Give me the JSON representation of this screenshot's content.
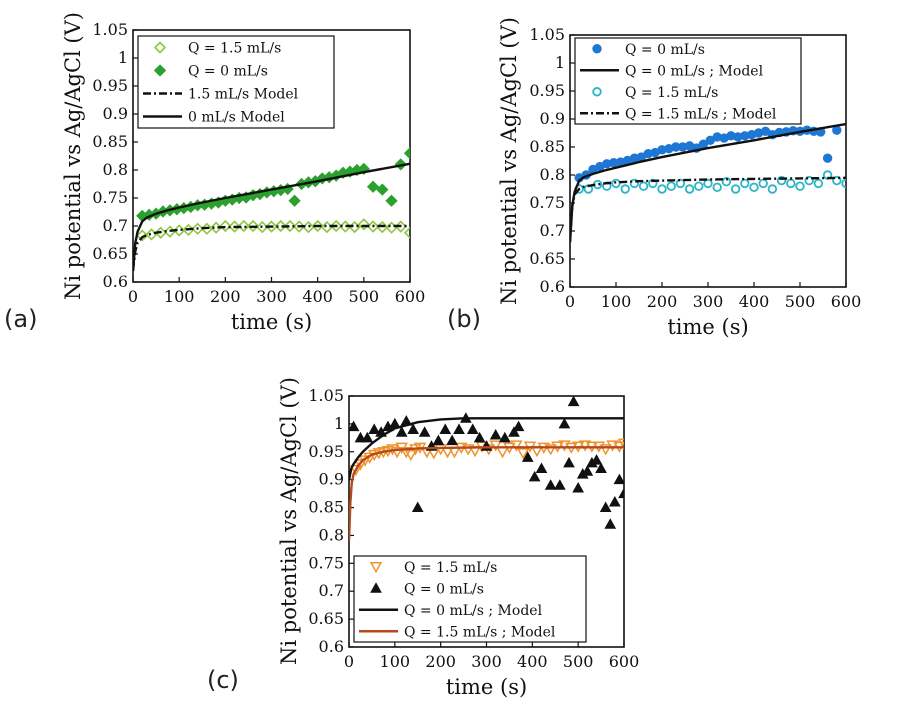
{
  "chart_data": [
    {
      "panel": "(a)",
      "type": "scatter",
      "xlabel": "time (s)",
      "ylabel": "Ni potential vs Ag/AgCl (V)",
      "xlim": [
        0,
        600
      ],
      "ylim": [
        0.6,
        1.05
      ],
      "xticks": [
        "0",
        "100",
        "200",
        "300",
        "400",
        "500",
        "600"
      ],
      "yticks": [
        "0.6",
        "0.65",
        "0.7",
        "0.75",
        "0.8",
        "0.85",
        "0.9",
        "0.95",
        "1",
        "1.05"
      ],
      "legend_position": "top-left",
      "series": [
        {
          "name": "Q = 1.5 mL/s",
          "kind": "points",
          "marker": "diamond-open",
          "color": "#8dc63f",
          "x": [
            20,
            40,
            60,
            80,
            100,
            120,
            140,
            160,
            180,
            200,
            220,
            240,
            260,
            280,
            300,
            320,
            340,
            360,
            380,
            400,
            420,
            440,
            460,
            480,
            500,
            520,
            540,
            560,
            580,
            600
          ],
          "y": [
            0.683,
            0.685,
            0.688,
            0.69,
            0.692,
            0.693,
            0.695,
            0.695,
            0.697,
            0.7,
            0.699,
            0.7,
            0.7,
            0.698,
            0.699,
            0.7,
            0.7,
            0.699,
            0.698,
            0.7,
            0.698,
            0.7,
            0.699,
            0.698,
            0.703,
            0.699,
            0.698,
            0.697,
            0.699,
            0.688
          ]
        },
        {
          "name": "Q = 0 mL/s",
          "kind": "points",
          "marker": "diamond",
          "color": "#2ca02c",
          "x": [
            20,
            35,
            50,
            65,
            80,
            95,
            110,
            125,
            140,
            155,
            170,
            185,
            200,
            215,
            230,
            245,
            260,
            275,
            290,
            305,
            320,
            335,
            350,
            365,
            380,
            395,
            410,
            425,
            440,
            455,
            470,
            485,
            500,
            520,
            540,
            560,
            580,
            600
          ],
          "y": [
            0.718,
            0.72,
            0.722,
            0.726,
            0.728,
            0.73,
            0.732,
            0.734,
            0.737,
            0.738,
            0.74,
            0.742,
            0.745,
            0.747,
            0.75,
            0.751,
            0.755,
            0.757,
            0.76,
            0.762,
            0.764,
            0.766,
            0.745,
            0.775,
            0.778,
            0.78,
            0.785,
            0.787,
            0.79,
            0.795,
            0.797,
            0.8,
            0.802,
            0.77,
            0.765,
            0.745,
            0.81,
            0.83
          ]
        },
        {
          "name": "1.5 mL/s Model",
          "kind": "line",
          "dash": "dash-dot",
          "color": "#111111",
          "x": [
            0,
            5,
            10,
            20,
            30,
            50,
            75,
            100,
            150,
            200,
            300,
            400,
            500,
            600
          ],
          "y": [
            0.62,
            0.655,
            0.67,
            0.68,
            0.684,
            0.688,
            0.691,
            0.693,
            0.696,
            0.698,
            0.699,
            0.7,
            0.7,
            0.7
          ]
        },
        {
          "name": "0 mL/s Model",
          "kind": "line",
          "dash": "solid",
          "color": "#111111",
          "x": [
            0,
            5,
            10,
            20,
            30,
            50,
            75,
            100,
            150,
            200,
            300,
            400,
            500,
            600
          ],
          "y": [
            0.62,
            0.67,
            0.69,
            0.708,
            0.715,
            0.722,
            0.728,
            0.733,
            0.742,
            0.75,
            0.765,
            0.78,
            0.796,
            0.811
          ]
        }
      ]
    },
    {
      "panel": "(b)",
      "type": "scatter",
      "xlabel": "time (s)",
      "ylabel": "Ni potential vs Ag/AgCl (V)",
      "xlim": [
        0,
        600
      ],
      "ylim": [
        0.6,
        1.05
      ],
      "xticks": [
        "0",
        "100",
        "200",
        "300",
        "400",
        "500",
        "600"
      ],
      "yticks": [
        "0.6",
        "0.65",
        "0.7",
        "0.75",
        "0.8",
        "0.85",
        "0.9",
        "0.95",
        "1",
        "1.05"
      ],
      "legend_position": "top",
      "series": [
        {
          "name": "Q = 0 mL/s",
          "kind": "points",
          "marker": "circle",
          "color": "#1f77d4",
          "x": [
            20,
            35,
            50,
            65,
            80,
            95,
            110,
            125,
            140,
            155,
            170,
            185,
            200,
            215,
            230,
            245,
            260,
            275,
            290,
            305,
            320,
            335,
            350,
            365,
            380,
            395,
            410,
            425,
            440,
            455,
            470,
            485,
            500,
            515,
            530,
            545,
            560,
            580
          ],
          "y": [
            0.795,
            0.8,
            0.81,
            0.815,
            0.82,
            0.822,
            0.823,
            0.826,
            0.83,
            0.832,
            0.838,
            0.84,
            0.845,
            0.847,
            0.85,
            0.85,
            0.852,
            0.848,
            0.855,
            0.862,
            0.868,
            0.866,
            0.87,
            0.868,
            0.87,
            0.872,
            0.875,
            0.878,
            0.872,
            0.876,
            0.877,
            0.879,
            0.878,
            0.88,
            0.878,
            0.877,
            0.83,
            0.88
          ]
        },
        {
          "name": "Q = 0 mL/s ; Model",
          "kind": "line",
          "dash": "solid",
          "color": "#111111",
          "x": [
            0,
            5,
            10,
            20,
            30,
            50,
            75,
            100,
            150,
            200,
            300,
            400,
            500,
            600
          ],
          "y": [
            0.68,
            0.745,
            0.77,
            0.79,
            0.796,
            0.802,
            0.808,
            0.813,
            0.823,
            0.832,
            0.848,
            0.862,
            0.877,
            0.891
          ]
        },
        {
          "name": "Q = 1.5 mL/s",
          "kind": "points",
          "marker": "circle-open",
          "color": "#2bb5c8",
          "x": [
            20,
            40,
            60,
            80,
            100,
            120,
            140,
            160,
            180,
            200,
            220,
            240,
            260,
            280,
            300,
            320,
            340,
            360,
            380,
            400,
            420,
            440,
            460,
            480,
            500,
            520,
            540,
            560,
            580,
            600
          ],
          "y": [
            0.775,
            0.775,
            0.783,
            0.78,
            0.785,
            0.775,
            0.785,
            0.78,
            0.785,
            0.775,
            0.78,
            0.785,
            0.775,
            0.78,
            0.785,
            0.778,
            0.788,
            0.775,
            0.785,
            0.778,
            0.785,
            0.775,
            0.79,
            0.785,
            0.78,
            0.79,
            0.785,
            0.8,
            0.79,
            0.785
          ]
        },
        {
          "name": "Q = 1.5 mL/s ; Model",
          "kind": "line",
          "dash": "dash-dot",
          "color": "#111111",
          "x": [
            0,
            5,
            10,
            20,
            30,
            50,
            75,
            100,
            150,
            200,
            300,
            400,
            500,
            600
          ],
          "y": [
            0.68,
            0.745,
            0.765,
            0.775,
            0.779,
            0.782,
            0.785,
            0.787,
            0.789,
            0.79,
            0.792,
            0.793,
            0.794,
            0.795
          ]
        }
      ]
    },
    {
      "panel": "(c)",
      "type": "scatter",
      "xlabel": "time (s)",
      "ylabel": "Ni potential vs Ag/AgCl (V)",
      "xlim": [
        0,
        600
      ],
      "ylim": [
        0.6,
        1.05
      ],
      "xticks": [
        "0",
        "100",
        "200",
        "300",
        "400",
        "500",
        "600"
      ],
      "yticks": [
        "0.6",
        "0.65",
        "0.7",
        "0.75",
        "0.8",
        "0.85",
        "0.9",
        "0.95",
        "1",
        "1.05"
      ],
      "legend_position": "bottom-left",
      "series": [
        {
          "name": "Q = 1.5 mL/s",
          "kind": "points",
          "marker": "triangle-down-open",
          "color": "#f0932b",
          "x": [
            15,
            25,
            35,
            45,
            55,
            65,
            75,
            85,
            95,
            105,
            115,
            125,
            135,
            145,
            155,
            170,
            185,
            200,
            215,
            230,
            245,
            260,
            275,
            290,
            305,
            320,
            335,
            350,
            365,
            380,
            395,
            410,
            425,
            440,
            455,
            470,
            485,
            500,
            515,
            530,
            545,
            560,
            575,
            590,
            600
          ],
          "y": [
            0.918,
            0.928,
            0.935,
            0.94,
            0.945,
            0.948,
            0.95,
            0.952,
            0.955,
            0.95,
            0.958,
            0.95,
            0.945,
            0.955,
            0.958,
            0.95,
            0.948,
            0.955,
            0.95,
            0.95,
            0.958,
            0.955,
            0.952,
            0.96,
            0.955,
            0.962,
            0.95,
            0.958,
            0.962,
            0.948,
            0.96,
            0.952,
            0.958,
            0.955,
            0.96,
            0.962,
            0.958,
            0.96,
            0.962,
            0.96,
            0.96,
            0.955,
            0.962,
            0.96,
            0.965
          ]
        },
        {
          "name": "Q = 0 mL/s",
          "kind": "points",
          "marker": "triangle",
          "color": "#111111",
          "x": [
            10,
            25,
            40,
            55,
            70,
            85,
            100,
            115,
            125,
            140,
            150,
            165,
            180,
            195,
            210,
            225,
            240,
            255,
            270,
            285,
            300,
            320,
            340,
            360,
            370,
            390,
            405,
            420,
            440,
            460,
            470,
            480,
            490,
            500,
            510,
            520,
            530,
            540,
            550,
            560,
            570,
            580,
            590,
            600
          ],
          "y": [
            0.995,
            0.975,
            0.975,
            0.99,
            0.985,
            0.995,
            1.0,
            0.985,
            1.005,
            0.99,
            0.85,
            0.985,
            0.96,
            0.97,
            0.99,
            0.97,
            0.99,
            1.01,
            0.99,
            0.975,
            0.96,
            0.98,
            0.975,
            0.985,
            0.995,
            0.94,
            0.905,
            0.92,
            0.89,
            0.89,
            1.0,
            0.93,
            1.04,
            0.885,
            0.91,
            0.915,
            0.93,
            0.935,
            0.92,
            0.85,
            0.82,
            0.86,
            0.9,
            0.875
          ]
        },
        {
          "name": "Q = 0 mL/s ; Model",
          "kind": "line",
          "dash": "solid",
          "color": "#111111",
          "x": [
            0,
            5,
            10,
            20,
            30,
            50,
            75,
            100,
            150,
            200,
            250,
            300,
            400,
            500,
            600
          ],
          "y": [
            0.9,
            0.92,
            0.928,
            0.94,
            0.95,
            0.965,
            0.98,
            0.992,
            1.003,
            1.008,
            1.01,
            1.01,
            1.01,
            1.01,
            1.01
          ]
        },
        {
          "name": "Q = 1.5 mL/s ; Model",
          "kind": "line",
          "dash": "solid",
          "color": "#b5491e",
          "x": [
            0,
            3,
            6,
            10,
            20,
            30,
            50,
            75,
            100,
            150,
            200,
            300,
            400,
            500,
            600
          ],
          "y": [
            0.79,
            0.86,
            0.895,
            0.91,
            0.925,
            0.935,
            0.945,
            0.95,
            0.953,
            0.956,
            0.957,
            0.958,
            0.958,
            0.958,
            0.958
          ]
        }
      ]
    }
  ],
  "panel_labels": {
    "a": "(a)",
    "b": "(b)",
    "c": "(c)"
  }
}
